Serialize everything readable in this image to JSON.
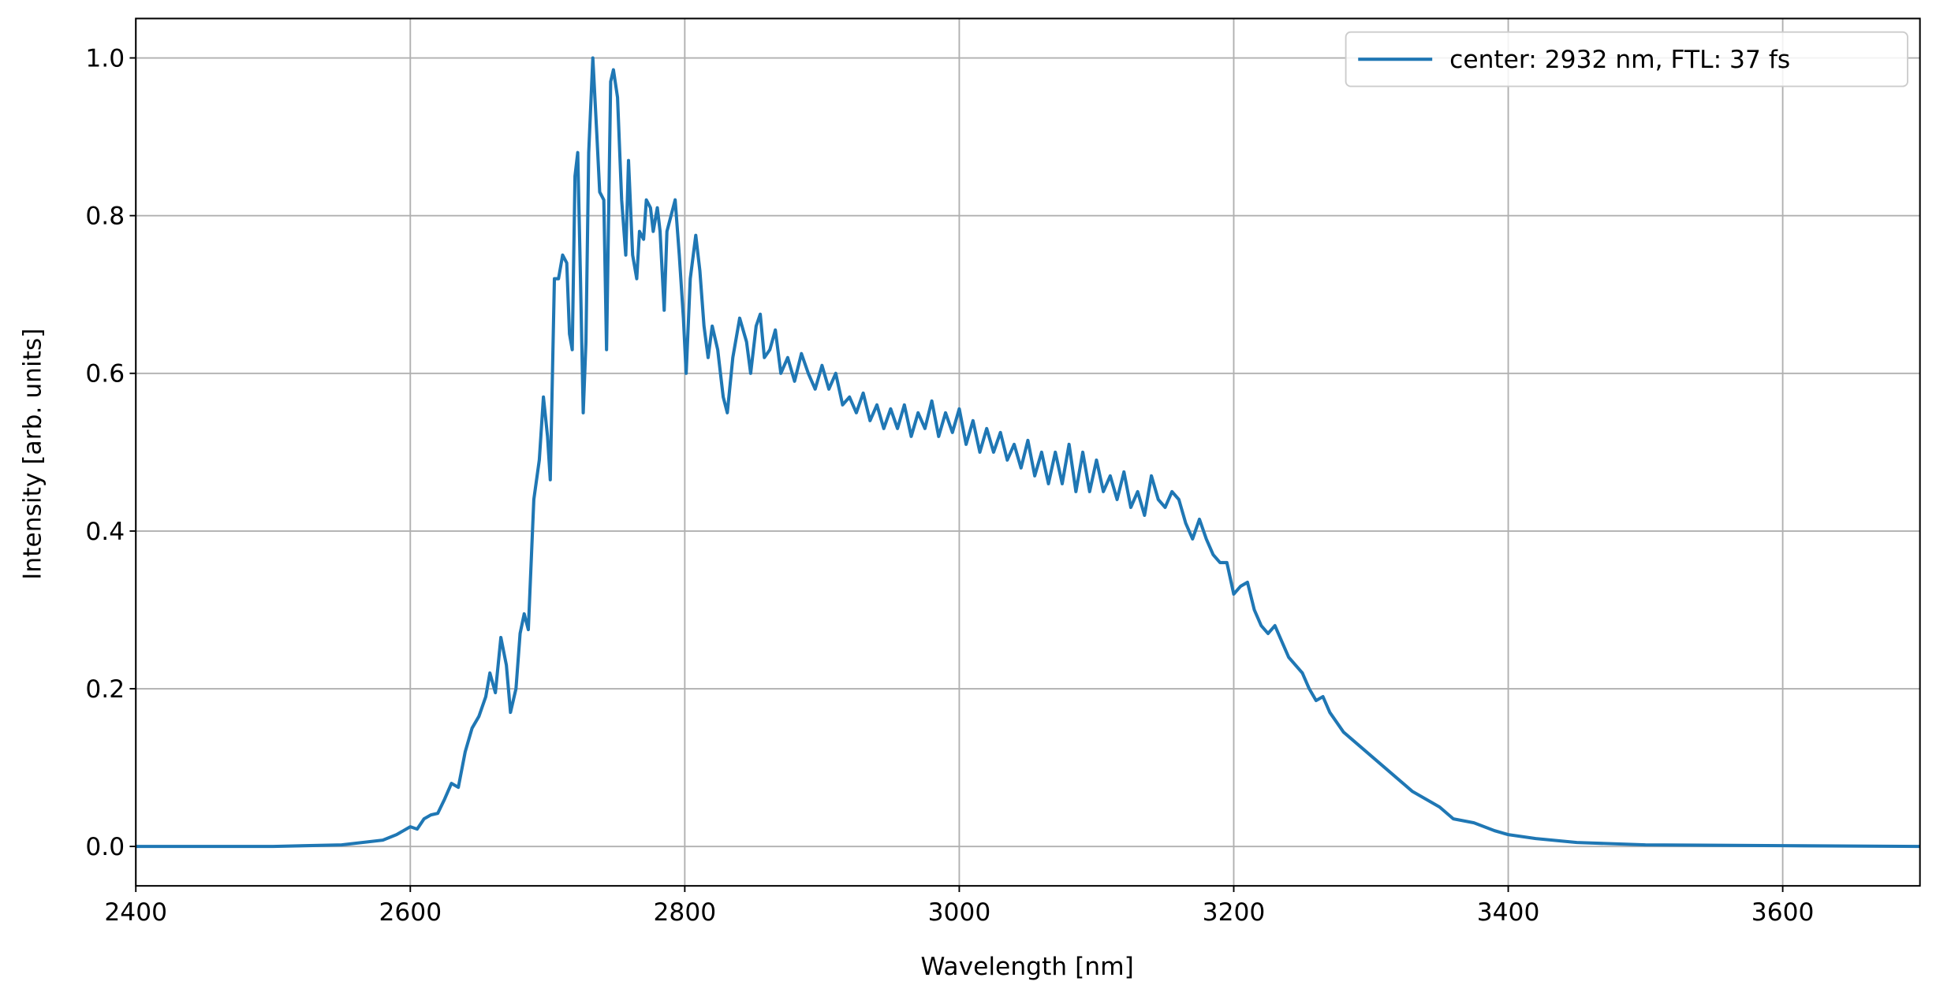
{
  "chart_data": {
    "type": "line",
    "xlabel": "Wavelength [nm]",
    "ylabel": "Intensity [arb. units]",
    "x": [
      2400,
      2450,
      2500,
      2550,
      2580,
      2590,
      2600,
      2605,
      2610,
      2615,
      2620,
      2625,
      2630,
      2635,
      2640,
      2645,
      2650,
      2655,
      2658,
      2662,
      2666,
      2670,
      2673,
      2677,
      2680,
      2683,
      2686,
      2690,
      2694,
      2697,
      2700,
      2702,
      2705,
      2708,
      2711,
      2714,
      2716,
      2718,
      2720,
      2722,
      2724,
      2726,
      2728,
      2730,
      2733,
      2736,
      2738,
      2741,
      2743,
      2746,
      2748,
      2751,
      2754,
      2757,
      2759,
      2762,
      2765,
      2767,
      2770,
      2772,
      2775,
      2777,
      2780,
      2782,
      2785,
      2787,
      2790,
      2793,
      2796,
      2799,
      2801,
      2804,
      2808,
      2811,
      2814,
      2817,
      2820,
      2824,
      2828,
      2831,
      2835,
      2840,
      2845,
      2848,
      2852,
      2855,
      2858,
      2862,
      2866,
      2870,
      2875,
      2880,
      2885,
      2890,
      2895,
      2900,
      2905,
      2910,
      2915,
      2920,
      2925,
      2930,
      2935,
      2940,
      2945,
      2950,
      2955,
      2960,
      2965,
      2970,
      2975,
      2980,
      2985,
      2990,
      2995,
      3000,
      3005,
      3010,
      3015,
      3020,
      3025,
      3030,
      3035,
      3040,
      3045,
      3050,
      3055,
      3060,
      3065,
      3070,
      3075,
      3080,
      3085,
      3090,
      3095,
      3100,
      3105,
      3110,
      3115,
      3120,
      3125,
      3130,
      3135,
      3140,
      3145,
      3150,
      3155,
      3160,
      3165,
      3170,
      3175,
      3180,
      3185,
      3190,
      3195,
      3200,
      3205,
      3210,
      3215,
      3220,
      3225,
      3230,
      3235,
      3240,
      3250,
      3255,
      3260,
      3265,
      3270,
      3280,
      3290,
      3300,
      3310,
      3320,
      3330,
      3340,
      3350,
      3360,
      3375,
      3390,
      3400,
      3420,
      3450,
      3500,
      3600,
      3700
    ],
    "series": [
      {
        "name": "center: 2932 nm, FTL: 37 fs",
        "color": "#1f77b4",
        "values": [
          0,
          0,
          0,
          0.002,
          0.008,
          0.015,
          0.025,
          0.022,
          0.035,
          0.04,
          0.042,
          0.06,
          0.08,
          0.075,
          0.12,
          0.15,
          0.165,
          0.19,
          0.22,
          0.195,
          0.265,
          0.23,
          0.17,
          0.2,
          0.27,
          0.295,
          0.275,
          0.44,
          0.49,
          0.57,
          0.52,
          0.465,
          0.72,
          0.72,
          0.75,
          0.74,
          0.65,
          0.63,
          0.85,
          0.88,
          0.72,
          0.55,
          0.64,
          0.88,
          1.0,
          0.9,
          0.83,
          0.82,
          0.63,
          0.97,
          0.985,
          0.95,
          0.82,
          0.75,
          0.87,
          0.75,
          0.72,
          0.78,
          0.77,
          0.82,
          0.81,
          0.78,
          0.81,
          0.78,
          0.68,
          0.78,
          0.8,
          0.82,
          0.75,
          0.67,
          0.6,
          0.72,
          0.775,
          0.73,
          0.66,
          0.62,
          0.66,
          0.63,
          0.57,
          0.55,
          0.62,
          0.67,
          0.64,
          0.6,
          0.66,
          0.675,
          0.62,
          0.63,
          0.655,
          0.6,
          0.62,
          0.59,
          0.625,
          0.6,
          0.58,
          0.61,
          0.58,
          0.6,
          0.56,
          0.57,
          0.55,
          0.575,
          0.54,
          0.56,
          0.53,
          0.555,
          0.53,
          0.56,
          0.52,
          0.55,
          0.53,
          0.565,
          0.52,
          0.55,
          0.525,
          0.555,
          0.51,
          0.54,
          0.5,
          0.53,
          0.5,
          0.525,
          0.49,
          0.51,
          0.48,
          0.515,
          0.47,
          0.5,
          0.46,
          0.5,
          0.46,
          0.51,
          0.45,
          0.5,
          0.45,
          0.49,
          0.45,
          0.47,
          0.44,
          0.475,
          0.43,
          0.45,
          0.42,
          0.47,
          0.44,
          0.43,
          0.45,
          0.44,
          0.41,
          0.39,
          0.415,
          0.39,
          0.37,
          0.36,
          0.36,
          0.32,
          0.33,
          0.335,
          0.3,
          0.28,
          0.27,
          0.28,
          0.26,
          0.24,
          0.22,
          0.2,
          0.185,
          0.19,
          0.17,
          0.145,
          0.13,
          0.115,
          0.1,
          0.085,
          0.07,
          0.06,
          0.05,
          0.035,
          0.03,
          0.02,
          0.015,
          0.01,
          0.005,
          0.002,
          0.001,
          0
        ]
      }
    ],
    "xlim": [
      2400,
      3700
    ],
    "ylim": [
      -0.05,
      1.05
    ],
    "xticks": [
      2400,
      2600,
      2800,
      3000,
      3200,
      3400,
      3600
    ],
    "yticks": [
      {
        "value": 0,
        "label": "0.0"
      },
      0.2,
      0.4,
      0.6,
      0.8,
      {
        "value": 1,
        "label": "1.0"
      }
    ],
    "grid": true,
    "legend": "upper right"
  }
}
